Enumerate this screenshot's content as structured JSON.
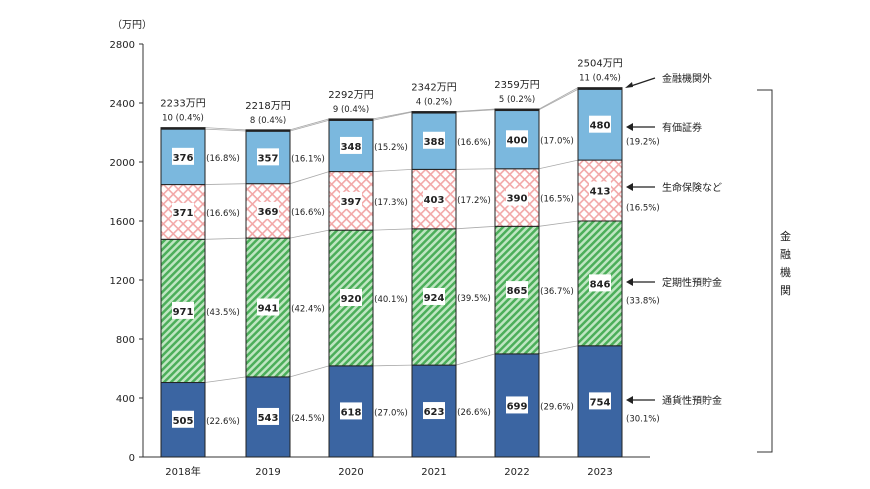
{
  "chart_data": {
    "type": "bar",
    "stacked": true,
    "unit_label": "（万円）",
    "categories": [
      "2018年",
      "2019",
      "2020",
      "2021",
      "2022",
      "2023"
    ],
    "ylim": [
      0,
      2800
    ],
    "yticks": [
      0,
      400,
      800,
      1200,
      1600,
      2000,
      2400,
      2800
    ],
    "totals": [
      "2233万円",
      "2218万円",
      "2292万円",
      "2342万円",
      "2359万円",
      "2504万円"
    ],
    "series": [
      {
        "name": "通貨性預貯金",
        "color": "#3b65a2",
        "pattern": "solid",
        "values": [
          505,
          543,
          618,
          623,
          699,
          754
        ],
        "pct": [
          "(22.6%)",
          "(24.5%)",
          "(27.0%)",
          "(26.6%)",
          "(29.6%)",
          "(30.1%)"
        ]
      },
      {
        "name": "定期性預貯金",
        "color": "#4cae5a",
        "pattern": "diagonal",
        "values": [
          971,
          941,
          920,
          924,
          865,
          846
        ],
        "pct": [
          "(43.5%)",
          "(42.4%)",
          "(40.1%)",
          "(39.5%)",
          "(36.7%)",
          "(33.8%)"
        ]
      },
      {
        "name": "生命保険など",
        "color": "#f2a8a8",
        "pattern": "crosshatch",
        "values": [
          371,
          369,
          397,
          403,
          390,
          413
        ],
        "pct": [
          "(16.6%)",
          "(16.6%)",
          "(17.3%)",
          "(17.2%)",
          "(16.5%)",
          "(16.5%)"
        ]
      },
      {
        "name": "有価証券",
        "color": "#7bb8de",
        "pattern": "solid",
        "values": [
          376,
          357,
          348,
          388,
          400,
          480
        ],
        "pct": [
          "(16.8%)",
          "(16.1%)",
          "(15.2%)",
          "(16.6%)",
          "(17.0%)",
          "(19.2%)"
        ]
      },
      {
        "name": "金融機関外",
        "color": "#222222",
        "pattern": "solid",
        "values": [
          10,
          8,
          9,
          4,
          5,
          11
        ],
        "pct": [
          "(0.4%)",
          "(0.4%)",
          "(0.4%)",
          "(0.2%)",
          "(0.2%)",
          "(0.4%)"
        ]
      }
    ],
    "bracket_label": "金融機関"
  }
}
